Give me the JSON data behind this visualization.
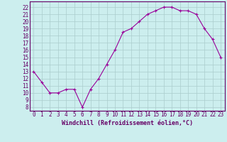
{
  "x": [
    0,
    1,
    2,
    3,
    4,
    5,
    6,
    7,
    8,
    9,
    10,
    11,
    12,
    13,
    14,
    15,
    16,
    17,
    18,
    19,
    20,
    21,
    22,
    23
  ],
  "y": [
    13,
    11.5,
    10,
    10,
    10.5,
    10.5,
    8,
    10.5,
    12,
    14,
    16,
    18.5,
    19,
    20,
    21,
    21.5,
    22,
    22,
    21.5,
    21.5,
    21,
    19,
    17.5,
    15
  ],
  "line_color": "#990099",
  "marker": "+",
  "marker_size": 3,
  "background_color": "#cceeee",
  "grid_color": "#aacccc",
  "xlabel": "Windchill (Refroidissement éolien,°C)",
  "xlabel_fontsize": 6.0,
  "ytick_min": 8,
  "ytick_max": 22,
  "ytick_step": 1,
  "xlim": [
    -0.5,
    23.5
  ],
  "ylim": [
    7.5,
    22.8
  ],
  "tick_fontsize": 5.5,
  "axis_label_color": "#660066",
  "tick_color": "#660066",
  "spine_color": "#660066",
  "line_width": 0.8
}
